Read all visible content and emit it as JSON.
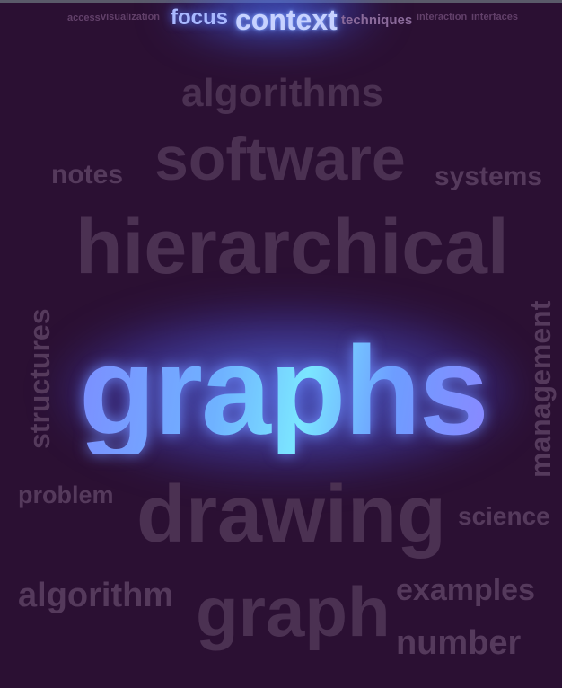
{
  "cloud": {
    "small_top_words": [
      "access",
      "visualization"
    ],
    "top_highlight": {
      "focus": "focus",
      "context": "context"
    },
    "techniques": "techniques",
    "words": {
      "algorithms": "algorithms",
      "software": "software",
      "notes": "notes",
      "systems": "systems",
      "hierarchical": "hierarchical",
      "structures": "structures",
      "management": "management",
      "graphs": "graphs",
      "problem": "problem",
      "drawing": "drawing",
      "science": "science",
      "algorithm": "algorithm",
      "graph": "graph",
      "examples": "examples",
      "number": "number"
    },
    "small_right_words": [
      "interaction",
      "interfaces"
    ]
  },
  "colors": {
    "background": "#2b1033",
    "dim_word": "#4b3152",
    "highlight": "#7aa3ff",
    "glow": "#5a7dff"
  }
}
